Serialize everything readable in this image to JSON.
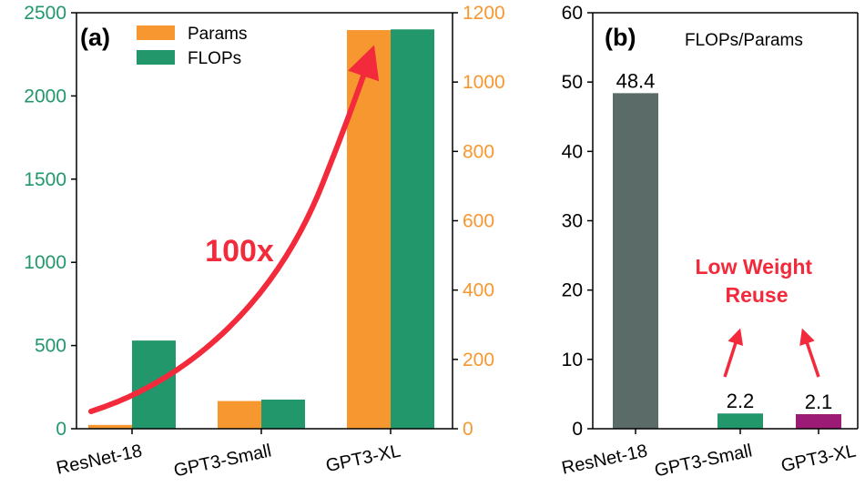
{
  "figure": {
    "colors": {
      "params": "#f7972f",
      "flops": "#22976c",
      "resnet_ratio": "#5b6b68",
      "gpt_small_ratio": "#22976c",
      "gpt_xl_ratio": "#9c1b74",
      "annotation": "#f22a3b",
      "axis": "#000000"
    }
  },
  "chart_data": [
    {
      "type": "bar",
      "panel_label": "(a)",
      "categories": [
        "ResNet-18",
        "GPT3-Small",
        "GPT3-XL"
      ],
      "series": [
        {
          "name": "Params",
          "axis": "right",
          "values": [
            11,
            80,
            1150
          ],
          "color": "#f7972f"
        },
        {
          "name": "FLOPs",
          "axis": "left",
          "values": [
            530,
            175,
            2400
          ],
          "color": "#22976c"
        }
      ],
      "ylim_left": [
        0,
        2500
      ],
      "yticks_left": [
        0,
        500,
        1000,
        1500,
        2000,
        2500
      ],
      "ylim_right": [
        0,
        1200
      ],
      "yticks_right": [
        0,
        200,
        400,
        600,
        800,
        1000,
        1200
      ],
      "legend": "top-left",
      "annotation": "100x",
      "grid": false
    },
    {
      "type": "bar",
      "panel_label": "(b)",
      "title": "FLOPs/Params",
      "categories": [
        "ResNet-18",
        "GPT3-Small",
        "GPT3-XL"
      ],
      "values": [
        48.4,
        2.2,
        2.1
      ],
      "value_labels": [
        "48.4",
        "2.2",
        "2.1"
      ],
      "colors": [
        "#5b6b68",
        "#22976c",
        "#9c1b74"
      ],
      "ylim": [
        0,
        60
      ],
      "yticks": [
        0,
        10,
        20,
        30,
        40,
        50,
        60
      ],
      "annotation": "Low Weight Reuse",
      "annotation_lines": [
        "Low Weight",
        "Reuse"
      ],
      "grid": false
    }
  ]
}
